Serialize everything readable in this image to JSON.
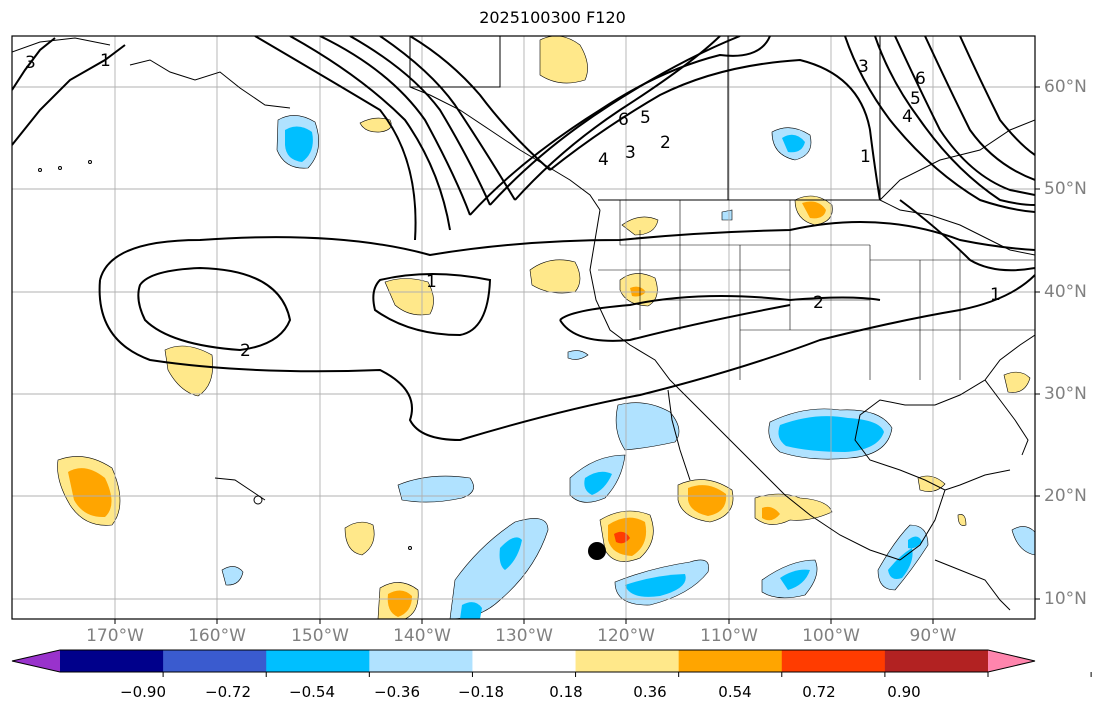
{
  "title": "2025100300 F120",
  "lat_labels": [
    "60°N",
    "50°N",
    "40°N",
    "30°N",
    "20°N",
    "10°N"
  ],
  "lon_labels": [
    "170°W",
    "160°W",
    "150°W",
    "140°W",
    "130°W",
    "120°W",
    "110°W",
    "100°W",
    "90°W"
  ],
  "contour_labels": [
    "3",
    "1",
    "6",
    "5",
    "4",
    "3",
    "2",
    "1",
    "2",
    "1",
    "2",
    "1",
    "3",
    "6",
    "5",
    "4"
  ],
  "colorbar": {
    "ticks": [
      "−0.90",
      "−0.72",
      "−0.54",
      "−0.36",
      "−0.18",
      "0.18",
      "0.36",
      "0.54",
      "0.72",
      "0.90"
    ],
    "colors": [
      "#9932cc",
      "#00008b",
      "#3a5bcf",
      "#00bfff",
      "#b0e2ff",
      "#ffffff",
      "#ffe88a",
      "#ffa500",
      "#ff3c00",
      "#b22222",
      "#ff85ad"
    ]
  },
  "marker": {
    "label": "",
    "lat": 15,
    "lon": -123
  }
}
